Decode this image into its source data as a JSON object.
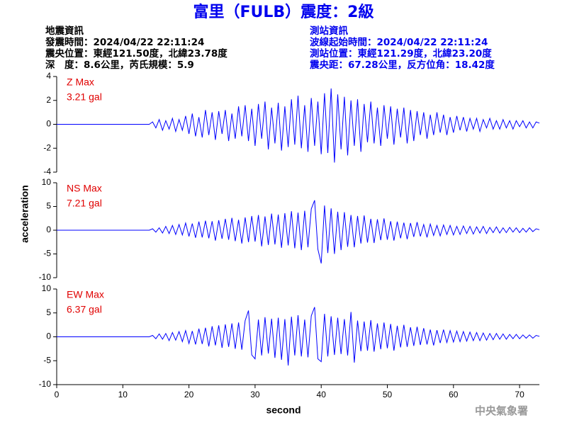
{
  "header": {
    "title": "富里（FULB）震度：2級",
    "left": [
      "地震資訊",
      "發震時間：2024/04/22 22:11:24",
      "震央位置：東經121.50度，北緯23.78度",
      "深　度：8.6公里，芮氏規模：5.9"
    ],
    "right": [
      "測站資訊",
      "波線起始時間：2024/04/22 22:11:24",
      "測站位置：東經121.29度，北緯23.20度",
      "震央距：67.28公里，反方位角：18.42度"
    ]
  },
  "y_axis_label": "acceleration",
  "x_axis_label": "second",
  "footer": "中央氣象署",
  "chart_data": [
    {
      "type": "line",
      "label": "Z Max",
      "max_label": "3.21 gal",
      "ylim": [
        -4,
        4
      ],
      "yticks": [
        -4,
        -2,
        0,
        2,
        4
      ],
      "xlim": [
        0,
        73
      ],
      "x": [
        0,
        14,
        14.5,
        15,
        15.5,
        16,
        16.5,
        17,
        17.5,
        18,
        18.5,
        19,
        19.5,
        20,
        20.5,
        21,
        21.5,
        22,
        22.5,
        23,
        23.5,
        24,
        24.5,
        25,
        25.5,
        26,
        26.5,
        27,
        27.5,
        28,
        28.5,
        29,
        29.5,
        30,
        30.5,
        31,
        31.5,
        32,
        32.5,
        33,
        33.5,
        34,
        34.5,
        35,
        35.5,
        36,
        36.5,
        37,
        37.5,
        38,
        38.5,
        39,
        39.5,
        40,
        40.5,
        41,
        41.5,
        42,
        42.5,
        43,
        43.5,
        44,
        44.5,
        45,
        45.5,
        46,
        46.5,
        47,
        47.5,
        48,
        48.5,
        49,
        49.5,
        50,
        50.5,
        51,
        51.5,
        52,
        52.5,
        53,
        53.5,
        54,
        54.5,
        55,
        55.5,
        56,
        56.5,
        57,
        57.5,
        58,
        58.5,
        59,
        59.5,
        60,
        60.5,
        61,
        61.5,
        62,
        62.5,
        63,
        63.5,
        64,
        64.5,
        65,
        65.5,
        66,
        66.5,
        67,
        67.5,
        68,
        68.5,
        69,
        69.5,
        70,
        70.5,
        71,
        71.5,
        72,
        72.5,
        73
      ],
      "series": [
        {
          "color": "#0000ff",
          "values": [
            0,
            0,
            0.2,
            -0.3,
            0.4,
            -0.5,
            0.3,
            -0.4,
            0.5,
            -0.6,
            0.4,
            -0.5,
            0.7,
            -0.8,
            0.9,
            -1.0,
            0.6,
            -1.1,
            1.2,
            -0.9,
            1.0,
            -1.3,
            1.1,
            -0.8,
            1.2,
            -1.4,
            0.9,
            -1.2,
            1.5,
            -1.0,
            1.6,
            -1.4,
            1.3,
            -1.8,
            1.7,
            -1.2,
            1.9,
            -2.1,
            1.4,
            -1.6,
            1.8,
            -2.2,
            1.5,
            -1.9,
            2.1,
            -1.7,
            2.4,
            -2.0,
            1.6,
            -2.3,
            2.2,
            -1.8,
            1.9,
            -2.5,
            2.6,
            -2.4,
            3.0,
            -3.2,
            2.5,
            -2.1,
            2.3,
            -2.6,
            2.0,
            -1.8,
            2.1,
            -2.3,
            1.7,
            -1.5,
            1.9,
            -1.6,
            1.4,
            -1.8,
            1.6,
            -1.2,
            1.5,
            -1.7,
            1.3,
            -1.1,
            1.4,
            -1.6,
            1.2,
            -1.4,
            1.1,
            -0.9,
            1.0,
            -1.2,
            0.8,
            -0.9,
            1.0,
            -0.7,
            0.8,
            -0.9,
            0.6,
            -0.7,
            0.7,
            -0.5,
            0.6,
            -0.6,
            0.5,
            -0.4,
            0.5,
            -0.6,
            0.4,
            -0.3,
            0.5,
            -0.4,
            0.3,
            -0.4,
            0.4,
            -0.3,
            0.3,
            -0.4,
            0.3,
            -0.2,
            0.3,
            -0.3,
            0.2,
            -0.3,
            0.2,
            0.1
          ]
        }
      ]
    },
    {
      "type": "line",
      "label": "NS Max",
      "max_label": "7.21 gal",
      "ylim": [
        -10,
        10
      ],
      "yticks": [
        -10,
        -5,
        0,
        5,
        10
      ],
      "xlim": [
        0,
        73
      ],
      "x": [
        0,
        14,
        14.5,
        15,
        15.5,
        16,
        16.5,
        17,
        17.5,
        18,
        18.5,
        19,
        19.5,
        20,
        20.5,
        21,
        21.5,
        22,
        22.5,
        23,
        23.5,
        24,
        24.5,
        25,
        25.5,
        26,
        26.5,
        27,
        27.5,
        28,
        28.5,
        29,
        29.5,
        30,
        30.5,
        31,
        31.5,
        32,
        32.5,
        33,
        33.5,
        34,
        34.5,
        35,
        35.5,
        36,
        36.5,
        37,
        37.5,
        38,
        38.5,
        39,
        39.5,
        40,
        40.5,
        41,
        41.5,
        42,
        42.5,
        43,
        43.5,
        44,
        44.5,
        45,
        45.5,
        46,
        46.5,
        47,
        47.5,
        48,
        48.5,
        49,
        49.5,
        50,
        50.5,
        51,
        51.5,
        52,
        52.5,
        53,
        53.5,
        54,
        54.5,
        55,
        55.5,
        56,
        56.5,
        57,
        57.5,
        58,
        58.5,
        59,
        59.5,
        60,
        60.5,
        61,
        61.5,
        62,
        62.5,
        63,
        63.5,
        64,
        64.5,
        65,
        65.5,
        66,
        66.5,
        67,
        67.5,
        68,
        68.5,
        69,
        69.5,
        70,
        70.5,
        71,
        71.5,
        72,
        72.5,
        73
      ],
      "series": [
        {
          "color": "#0000ff",
          "values": [
            0,
            0,
            0.3,
            -0.4,
            0.5,
            -0.6,
            0.8,
            -0.7,
            1.0,
            -0.9,
            1.2,
            -1.0,
            1.5,
            -1.3,
            1.4,
            -1.6,
            1.8,
            -1.5,
            2.0,
            -1.7,
            1.9,
            -2.2,
            2.1,
            -1.8,
            2.4,
            -2.0,
            2.6,
            -2.3,
            2.2,
            -2.8,
            2.7,
            -2.5,
            3.0,
            -2.4,
            3.2,
            -3.4,
            2.9,
            -3.1,
            3.5,
            -3.0,
            3.3,
            -3.7,
            3.6,
            -3.2,
            4.0,
            -3.8,
            3.7,
            -4.2,
            4.1,
            -3.6,
            4.5,
            6.3,
            -4.0,
            -7.0,
            5.2,
            -4.8,
            4.6,
            -5.0,
            3.9,
            -4.2,
            3.8,
            -3.5,
            3.2,
            -3.6,
            3.0,
            -2.8,
            3.1,
            -2.6,
            2.4,
            -2.7,
            2.3,
            -2.1,
            2.5,
            -2.0,
            1.9,
            -2.2,
            1.8,
            -1.7,
            1.6,
            -1.9,
            1.5,
            -1.4,
            1.7,
            -1.3,
            1.2,
            -1.5,
            1.3,
            -1.1,
            1.0,
            -1.2,
            1.1,
            -0.9,
            1.0,
            -1.0,
            0.8,
            -0.9,
            0.9,
            -0.7,
            0.8,
            -0.8,
            0.7,
            -0.6,
            0.8,
            -0.7,
            0.6,
            -0.5,
            0.7,
            -0.6,
            0.5,
            -0.5,
            0.6,
            -0.4,
            0.5,
            -0.5,
            0.4,
            -0.4,
            0.5,
            -0.3,
            0.3,
            0.1
          ]
        }
      ]
    },
    {
      "type": "line",
      "label": "EW Max",
      "max_label": "6.37 gal",
      "ylim": [
        -10,
        10
      ],
      "yticks": [
        -10,
        -5,
        0,
        5,
        10
      ],
      "xlim": [
        0,
        73
      ],
      "xticks": [
        0,
        10,
        20,
        30,
        40,
        50,
        60,
        70
      ],
      "x": [
        0,
        14,
        14.5,
        15,
        15.5,
        16,
        16.5,
        17,
        17.5,
        18,
        18.5,
        19,
        19.5,
        20,
        20.5,
        21,
        21.5,
        22,
        22.5,
        23,
        23.5,
        24,
        24.5,
        25,
        25.5,
        26,
        26.5,
        27,
        27.5,
        28,
        28.5,
        29,
        29.5,
        30,
        30.5,
        31,
        31.5,
        32,
        32.5,
        33,
        33.5,
        34,
        34.5,
        35,
        35.5,
        36,
        36.5,
        37,
        37.5,
        38,
        38.5,
        39,
        39.5,
        40,
        40.5,
        41,
        41.5,
        42,
        42.5,
        43,
        43.5,
        44,
        44.5,
        45,
        45.5,
        46,
        46.5,
        47,
        47.5,
        48,
        48.5,
        49,
        49.5,
        50,
        50.5,
        51,
        51.5,
        52,
        52.5,
        53,
        53.5,
        54,
        54.5,
        55,
        55.5,
        56,
        56.5,
        57,
        57.5,
        58,
        58.5,
        59,
        59.5,
        60,
        60.5,
        61,
        61.5,
        62,
        62.5,
        63,
        63.5,
        64,
        64.5,
        65,
        65.5,
        66,
        66.5,
        67,
        67.5,
        68,
        68.5,
        69,
        69.5,
        70,
        70.5,
        71,
        71.5,
        72,
        72.5,
        73
      ],
      "series": [
        {
          "color": "#0000ff",
          "values": [
            0,
            0,
            0.3,
            -0.4,
            0.6,
            -0.5,
            0.7,
            -0.8,
            0.9,
            -0.7,
            1.1,
            -1.0,
            1.3,
            -1.4,
            1.2,
            -1.6,
            1.7,
            -1.5,
            1.9,
            -2.0,
            2.2,
            -1.8,
            2.4,
            -2.3,
            2.6,
            -2.1,
            2.8,
            -2.5,
            3.0,
            -2.7,
            3.4,
            5.5,
            -3.8,
            -4.6,
            3.6,
            -3.9,
            4.1,
            -3.5,
            3.8,
            -4.4,
            4.0,
            -4.8,
            3.7,
            -6.0,
            4.2,
            -3.9,
            4.5,
            -4.1,
            3.6,
            -4.3,
            4.4,
            6.2,
            -4.6,
            -5.2,
            4.8,
            -4.1,
            4.3,
            -3.8,
            4.0,
            -3.6,
            3.7,
            -3.9,
            5.2,
            -5.4,
            3.4,
            -3.0,
            3.2,
            -2.9,
            3.5,
            -3.1,
            2.8,
            -2.6,
            3.0,
            -2.4,
            2.7,
            -2.9,
            2.3,
            -2.2,
            2.5,
            -2.1,
            2.0,
            -1.9,
            2.1,
            -1.7,
            1.8,
            -1.6,
            1.5,
            -1.8,
            1.4,
            -1.3,
            1.5,
            -1.2,
            1.3,
            -1.1,
            1.2,
            -1.0,
            1.1,
            -0.9,
            1.0,
            -0.8,
            0.9,
            -0.8,
            0.8,
            -0.7,
            0.7,
            -0.6,
            0.7,
            -0.5,
            0.6,
            -0.5,
            0.5,
            -0.4,
            0.5,
            -0.4,
            0.4,
            -0.3,
            0.4,
            -0.3,
            0.3,
            0.1
          ]
        }
      ]
    }
  ]
}
